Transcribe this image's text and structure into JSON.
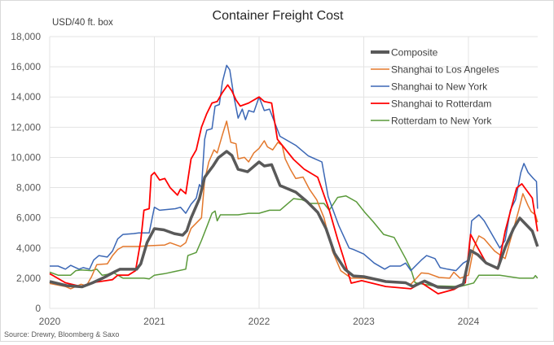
{
  "chart_data": {
    "type": "line",
    "title": "Container Freight Cost",
    "ylabel": "USD/40 ft. box",
    "xlabel": "",
    "source": "Source: Drewry, Bloomberg & Saxo",
    "xlim": [
      2020,
      2024.66
    ],
    "ylim": [
      0,
      18000
    ],
    "x_ticks": [
      "2020",
      "2021",
      "2022",
      "2023",
      "2024"
    ],
    "y_ticks": [
      "0",
      "2,000",
      "4,000",
      "6,000",
      "8,000",
      "10,000",
      "12,000",
      "14,000",
      "16,000",
      "18,000"
    ],
    "grid": true,
    "legend_placement": "top-right",
    "series": [
      {
        "name": "Composite",
        "color": "#595959",
        "width": 3.5,
        "x": [
          2020.0,
          2020.16,
          2020.31,
          2020.41,
          2020.52,
          2020.62,
          2020.67,
          2020.83,
          2020.87,
          2020.93,
          2021.0,
          2021.09,
          2021.19,
          2021.27,
          2021.31,
          2021.35,
          2021.43,
          2021.48,
          2021.56,
          2021.61,
          2021.69,
          2021.74,
          2021.8,
          2021.89,
          2022.0,
          2022.05,
          2022.12,
          2022.2,
          2022.35,
          2022.46,
          2022.56,
          2022.64,
          2022.72,
          2022.82,
          2022.9,
          2023.0,
          2023.21,
          2023.4,
          2023.47,
          2023.58,
          2023.71,
          2023.86,
          2023.95,
          2024.02,
          2024.09,
          2024.17,
          2024.28,
          2024.35,
          2024.43,
          2024.49,
          2024.61,
          2024.66
        ],
        "y": [
          1780,
          1510,
          1430,
          1700,
          2050,
          2420,
          2590,
          2590,
          2950,
          4360,
          5280,
          5200,
          4950,
          4850,
          5140,
          5980,
          7270,
          8680,
          9430,
          9970,
          10400,
          10130,
          9210,
          9050,
          9700,
          9430,
          9520,
          8140,
          7700,
          7060,
          6360,
          5280,
          3660,
          2590,
          2150,
          2100,
          1780,
          1700,
          1450,
          1810,
          1400,
          1350,
          1600,
          3830,
          3550,
          3000,
          2650,
          4030,
          5280,
          5980,
          5120,
          4100
        ]
      },
      {
        "name": "Shanghai to Los Angeles",
        "color": "#E3782C",
        "width": 1.5,
        "x": [
          2020.0,
          2020.15,
          2020.2,
          2020.3,
          2020.35,
          2020.4,
          2020.45,
          2020.55,
          2020.6,
          2020.65,
          2020.7,
          2020.85,
          2020.95,
          2021.1,
          2021.15,
          2021.25,
          2021.3,
          2021.35,
          2021.45,
          2021.48,
          2021.52,
          2021.57,
          2021.6,
          2021.65,
          2021.69,
          2021.73,
          2021.78,
          2021.8,
          2021.86,
          2021.9,
          2021.95,
          2022.0,
          2022.05,
          2022.08,
          2022.13,
          2022.18,
          2022.22,
          2022.25,
          2022.3,
          2022.35,
          2022.42,
          2022.48,
          2022.55,
          2022.62,
          2022.7,
          2022.78,
          2022.88,
          2023.0,
          2023.2,
          2023.35,
          2023.45,
          2023.55,
          2023.62,
          2023.72,
          2023.82,
          2023.86,
          2023.92,
          2024.0,
          2024.05,
          2024.1,
          2024.15,
          2024.25,
          2024.35,
          2024.42,
          2024.48,
          2024.52,
          2024.57,
          2024.6,
          2024.64,
          2024.66
        ],
        "y": [
          1650,
          1450,
          1300,
          1600,
          1500,
          2100,
          2900,
          2950,
          3500,
          3900,
          4100,
          4100,
          4150,
          4200,
          4350,
          4100,
          4350,
          5300,
          6000,
          8500,
          9700,
          10500,
          10300,
          11500,
          12400,
          11000,
          10900,
          9900,
          10000,
          9700,
          10300,
          10600,
          11100,
          10700,
          10500,
          11000,
          10800,
          9900,
          9200,
          8600,
          8700,
          7900,
          7200,
          6000,
          3800,
          2500,
          2000,
          2000,
          1800,
          1750,
          1600,
          2350,
          2300,
          2050,
          2000,
          2400,
          2000,
          2200,
          4000,
          4800,
          4600,
          3800,
          3300,
          5000,
          6500,
          7600,
          6800,
          6400,
          6200,
          5700
        ]
      },
      {
        "name": "Shanghai to New York",
        "color": "#3B67B5",
        "width": 1.5,
        "x": [
          2020.0,
          2020.08,
          2020.15,
          2020.2,
          2020.28,
          2020.32,
          2020.38,
          2020.42,
          2020.47,
          2020.55,
          2020.6,
          2020.65,
          2020.7,
          2020.8,
          2020.85,
          2020.95,
          2021.0,
          2021.05,
          2021.2,
          2021.25,
          2021.3,
          2021.35,
          2021.4,
          2021.43,
          2021.45,
          2021.48,
          2021.5,
          2021.55,
          2021.58,
          2021.62,
          2021.65,
          2021.69,
          2021.72,
          2021.76,
          2021.8,
          2021.84,
          2021.87,
          2021.9,
          2021.95,
          2022.0,
          2022.05,
          2022.1,
          2022.2,
          2022.35,
          2022.47,
          2022.6,
          2022.66,
          2022.76,
          2022.86,
          2022.9,
          2023.0,
          2023.1,
          2023.2,
          2023.25,
          2023.35,
          2023.4,
          2023.45,
          2023.55,
          2023.6,
          2023.68,
          2023.73,
          2023.8,
          2023.88,
          2023.95,
          2024.0,
          2024.03,
          2024.1,
          2024.15,
          2024.2,
          2024.3,
          2024.35,
          2024.4,
          2024.45,
          2024.5,
          2024.53,
          2024.57,
          2024.62,
          2024.65,
          2024.66
        ],
        "y": [
          2800,
          2800,
          2600,
          2850,
          2600,
          2700,
          2600,
          3200,
          3500,
          3400,
          3800,
          4600,
          4900,
          4950,
          5000,
          5000,
          6700,
          6500,
          6600,
          6700,
          6300,
          6900,
          7300,
          8200,
          8000,
          11200,
          11800,
          11900,
          13400,
          13500,
          15000,
          16100,
          15800,
          14000,
          12600,
          13200,
          12500,
          13100,
          13000,
          14000,
          13100,
          13200,
          11400,
          10800,
          10100,
          9700,
          7400,
          5500,
          4000,
          3900,
          3600,
          3000,
          2600,
          2800,
          2800,
          3000,
          2500,
          3200,
          3500,
          3300,
          2700,
          2600,
          2500,
          3000,
          3200,
          5800,
          6200,
          5800,
          5200,
          4000,
          4500,
          6500,
          7200,
          9000,
          9600,
          9000,
          8600,
          8400,
          6600
        ]
      },
      {
        "name": "Shanghai to Rotterdam",
        "color": "#FF0000",
        "width": 1.8,
        "x": [
          2020.0,
          2020.05,
          2020.15,
          2020.3,
          2020.4,
          2020.5,
          2020.6,
          2020.65,
          2020.75,
          2020.82,
          2020.87,
          2020.9,
          2020.95,
          2020.97,
          2021.0,
          2021.05,
          2021.1,
          2021.15,
          2021.22,
          2021.25,
          2021.3,
          2021.35,
          2021.4,
          2021.45,
          2021.5,
          2021.55,
          2021.6,
          2021.65,
          2021.7,
          2021.74,
          2021.78,
          2021.82,
          2021.9,
          2022.0,
          2022.05,
          2022.12,
          2022.175,
          2022.33,
          2022.43,
          2022.56,
          2022.67,
          2022.75,
          2022.8,
          2022.88,
          2022.98,
          2023.21,
          2023.45,
          2023.55,
          2023.71,
          2023.86,
          2023.97,
          2024.02,
          2024.09,
          2024.17,
          2024.28,
          2024.35,
          2024.46,
          2024.51,
          2024.61,
          2024.66
        ],
        "y": [
          2300,
          2100,
          1700,
          1450,
          1700,
          1800,
          1900,
          2200,
          2200,
          2500,
          4500,
          6500,
          6600,
          8800,
          9000,
          8500,
          8600,
          8000,
          7500,
          7900,
          7600,
          9900,
          10500,
          12000,
          12900,
          13600,
          13700,
          14300,
          14800,
          14400,
          13800,
          13400,
          13600,
          14000,
          13700,
          13600,
          11200,
          9860,
          9220,
          8680,
          6520,
          4580,
          3500,
          1670,
          1840,
          1450,
          1300,
          1700,
          970,
          1250,
          1700,
          4900,
          4000,
          3000,
          2600,
          5100,
          7970,
          8250,
          7300,
          5100
        ]
      },
      {
        "name": "Rotterdam to New York",
        "color": "#5A9A3A",
        "width": 1.5,
        "x": [
          2020.0,
          2020.08,
          2020.2,
          2020.25,
          2020.3,
          2020.4,
          2020.45,
          2020.5,
          2020.55,
          2020.6,
          2020.7,
          2020.9,
          2020.95,
          2021.0,
          2021.1,
          2021.2,
          2021.3,
          2021.32,
          2021.4,
          2021.45,
          2021.5,
          2021.55,
          2021.58,
          2021.6,
          2021.63,
          2021.8,
          2021.9,
          2022.0,
          2022.1,
          2022.2,
          2022.33,
          2022.41,
          2022.49,
          2022.62,
          2022.67,
          2022.75,
          2022.83,
          2022.93,
          2023.01,
          2023.09,
          2023.19,
          2023.29,
          2023.4,
          2023.45,
          2023.49,
          2023.66,
          2023.92,
          2024.05,
          2024.1,
          2024.3,
          2024.49,
          2024.62,
          2024.64,
          2024.66
        ],
        "y": [
          2400,
          2200,
          2200,
          2500,
          2550,
          2500,
          2600,
          2200,
          2250,
          2400,
          2000,
          2000,
          1950,
          2200,
          2300,
          2450,
          2600,
          3500,
          3700,
          4500,
          5400,
          6300,
          6450,
          5800,
          6200,
          6200,
          6300,
          6300,
          6500,
          6500,
          7270,
          7200,
          6950,
          6950,
          6500,
          7350,
          7450,
          7060,
          6360,
          5740,
          4900,
          4700,
          3300,
          2600,
          1700,
          1500,
          1450,
          1680,
          2200,
          2200,
          2000,
          2000,
          2170,
          2000
        ]
      }
    ]
  }
}
